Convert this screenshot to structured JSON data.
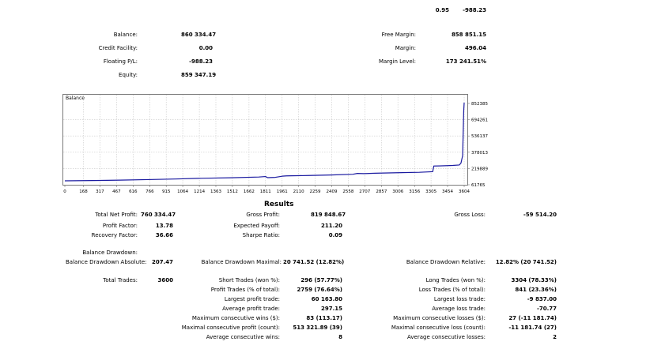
{
  "top_row": {
    "left": "0.95",
    "right": "-988.23"
  },
  "account": {
    "balance_label": "Balance:",
    "balance_value": "860 334.47",
    "credit_label": "Credit Facility:",
    "credit_value": "0.00",
    "floating_label": "Floating P/L:",
    "floating_value": "-988.23",
    "equity_label": "Equity:",
    "equity_value": "859 347.19",
    "free_margin_label": "Free Margin:",
    "free_margin_value": "858 851.15",
    "margin_label": "Margin:",
    "margin_value": "496.04",
    "margin_level_label": "Margin Level:",
    "margin_level_value": "173 241.51%"
  },
  "chart_data": {
    "type": "line",
    "title": "Balance",
    "xlabel": "",
    "ylabel": "",
    "x_ticks": [
      "0",
      "168",
      "317",
      "467",
      "616",
      "766",
      "915",
      "1064",
      "1214",
      "1363",
      "1512",
      "1662",
      "1811",
      "1961",
      "2110",
      "2259",
      "2409",
      "2558",
      "2707",
      "2857",
      "3006",
      "3156",
      "3305",
      "3454",
      "3604"
    ],
    "y_ticks": [
      "852385",
      "694261",
      "536137",
      "378013",
      "219889",
      "61765"
    ],
    "xlim": [
      0,
      3604
    ],
    "ylim": [
      61765,
      852385
    ],
    "grid": true,
    "series": [
      {
        "color": "#1a1aa0",
        "x": [
          0,
          250,
          500,
          750,
          1000,
          1200,
          1500,
          1750,
          1811,
          1830,
          1900,
          1961,
          2000,
          2200,
          2400,
          2600,
          2640,
          2700,
          2800,
          3000,
          3200,
          3320,
          3330,
          3380,
          3500,
          3560,
          3575,
          3590,
          3600,
          3604
        ],
        "y": [
          100000,
          103000,
          107000,
          112000,
          118000,
          124000,
          130000,
          137000,
          142000,
          131000,
          134000,
          145000,
          148000,
          152000,
          157000,
          164000,
          172000,
          170000,
          174000,
          179000,
          183000,
          189000,
          244000,
          245000,
          250000,
          254000,
          272000,
          345000,
          780000,
          860334
        ]
      }
    ]
  },
  "results": {
    "title": "Results",
    "total_net_profit_label": "Total Net Profit:",
    "total_net_profit_value": "760 334.47",
    "gross_profit_label": "Gross Profit:",
    "gross_profit_value": "819 848.67",
    "gross_loss_label": "Gross Loss:",
    "gross_loss_value": "-59 514.20",
    "profit_factor_label": "Profit Factor:",
    "profit_factor_value": "13.78",
    "expected_payoff_label": "Expected Payoff:",
    "expected_payoff_value": "211.20",
    "recovery_factor_label": "Recovery Factor:",
    "recovery_factor_value": "36.66",
    "sharpe_ratio_label": "Sharpe Ratio:",
    "sharpe_ratio_value": "0.09",
    "balance_drawdown_label": "Balance Drawdown:",
    "balance_drawdown_absolute_label": "Balance Drawdown Absolute:",
    "balance_drawdown_absolute_value": "207.47",
    "balance_drawdown_maximal_label": "Balance Drawdown Maximal:",
    "balance_drawdown_maximal_value": "20 741.52 (12.82%)",
    "balance_drawdown_relative_label": "Balance Drawdown Relative:",
    "balance_drawdown_relative_value": "12.82% (20 741.52)",
    "total_trades_label": "Total Trades:",
    "total_trades_value": "3600",
    "short_trades_label": "Short Trades (won %):",
    "short_trades_value": "296 (57.77%)",
    "long_trades_label": "Long Trades (won %):",
    "long_trades_value": "3304 (78.33%)",
    "profit_trades_label": "Profit Trades (% of total):",
    "profit_trades_value": "2759 (76.64%)",
    "loss_trades_label": "Loss Trades (% of total):",
    "loss_trades_value": "841 (23.36%)",
    "largest_profit_label": "Largest profit trade:",
    "largest_profit_value": "60 163.80",
    "largest_loss_label": "Largest loss trade:",
    "largest_loss_value": "-9 837.00",
    "average_profit_label": "Average profit trade:",
    "average_profit_value": "297.15",
    "average_loss_label": "Average loss trade:",
    "average_loss_value": "-70.77",
    "max_consec_wins_label": "Maximum consecutive wins ($):",
    "max_consec_wins_value": "83 (113.17)",
    "max_consec_losses_label": "Maximum consecutive losses ($):",
    "max_consec_losses_value": "27 (-11 181.74)",
    "maximal_consec_profit_label": "Maximal consecutive profit (count):",
    "maximal_consec_profit_value": "513 321.89 (39)",
    "maximal_consec_loss_label": "Maximal consecutive loss (count):",
    "maximal_consec_loss_value": "-11 181.74 (27)",
    "avg_consec_wins_label": "Average consecutive wins:",
    "avg_consec_wins_value": "8",
    "avg_consec_losses_label": "Average consecutive losses:",
    "avg_consec_losses_value": "2"
  }
}
